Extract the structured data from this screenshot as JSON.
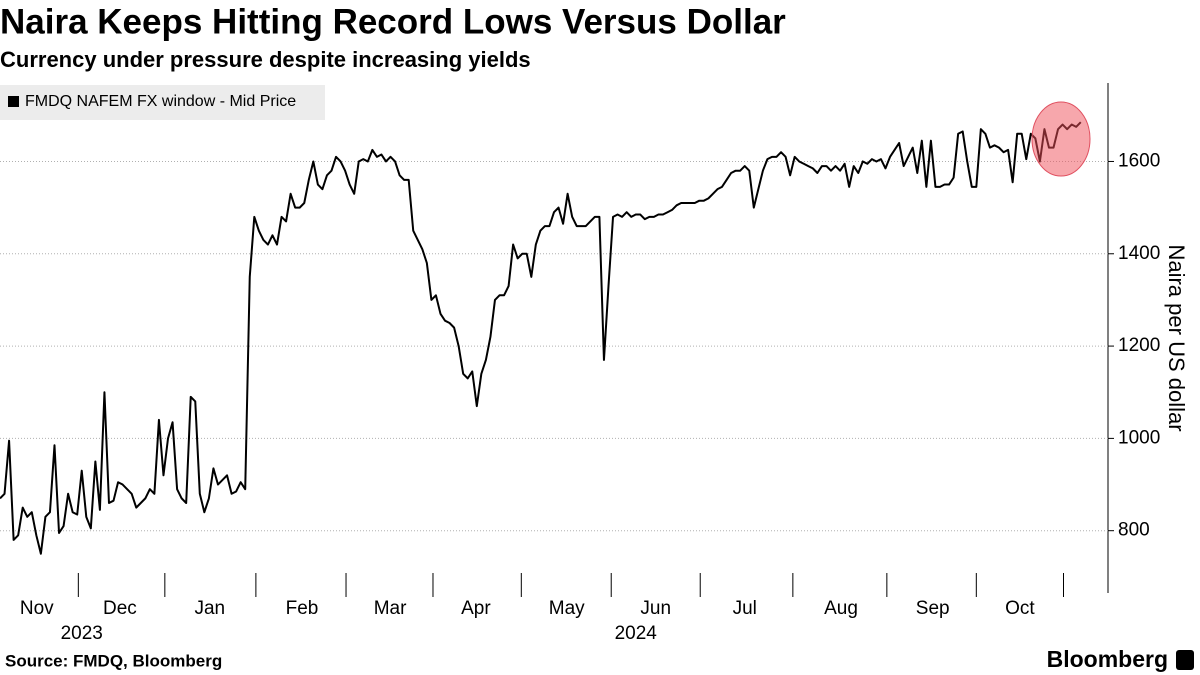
{
  "chart_data": {
    "type": "line",
    "title": "Naira Keeps Hitting Record Lows Versus Dollar",
    "subtitle": "Currency under pressure despite increasing yields",
    "ylabel": "Naira per US dollar",
    "source": "Source: FMDQ, Bloomberg",
    "brand": "Bloomberg",
    "ylim": [
      665,
      1770
    ],
    "yticks": [
      800,
      1000,
      1200,
      1400,
      1600
    ],
    "xlim": [
      0,
      244
    ],
    "xticks": [
      {
        "value": 8.1,
        "label": "Nov"
      },
      {
        "value": 26.4,
        "label": "Dec"
      },
      {
        "value": 46.2,
        "label": "Jan"
      },
      {
        "value": 66.5,
        "label": "Feb"
      },
      {
        "value": 85.9,
        "label": "Mar"
      },
      {
        "value": 104.8,
        "label": "Apr"
      },
      {
        "value": 124.8,
        "label": "May"
      },
      {
        "value": 144.4,
        "label": "Jun"
      },
      {
        "value": 164,
        "label": "Jul"
      },
      {
        "value": 185.2,
        "label": "Aug"
      },
      {
        "value": 205.4,
        "label": "Sep"
      },
      {
        "value": 224.6,
        "label": "Oct"
      }
    ],
    "year_labels": [
      {
        "value": 18,
        "label": "2023"
      },
      {
        "value": 140,
        "label": "2024"
      }
    ],
    "grid": true,
    "legend": "top-left",
    "series": [
      {
        "name": "FMDQ NAFEM FX window - Mid Price",
        "color": "#000000",
        "values": [
          870,
          880,
          995,
          780,
          790,
          850,
          830,
          840,
          790,
          750,
          830,
          840,
          985,
          795,
          810,
          880,
          840,
          835,
          930,
          830,
          805,
          950,
          845,
          1100,
          860,
          865,
          905,
          900,
          890,
          880,
          850,
          860,
          870,
          890,
          880,
          1040,
          920,
          1000,
          1035,
          890,
          870,
          860,
          1090,
          1080,
          880,
          840,
          870,
          935,
          900,
          910,
          920,
          880,
          885,
          905,
          890,
          1350,
          1480,
          1450,
          1430,
          1420,
          1440,
          1420,
          1480,
          1470,
          1530,
          1500,
          1500,
          1510,
          1560,
          1600,
          1550,
          1540,
          1570,
          1580,
          1610,
          1600,
          1580,
          1550,
          1530,
          1600,
          1605,
          1600,
          1625,
          1610,
          1615,
          1600,
          1610,
          1600,
          1570,
          1560,
          1560,
          1450,
          1430,
          1410,
          1380,
          1300,
          1310,
          1270,
          1255,
          1250,
          1240,
          1200,
          1140,
          1130,
          1145,
          1070,
          1140,
          1170,
          1220,
          1300,
          1310,
          1310,
          1330,
          1420,
          1390,
          1400,
          1400,
          1350,
          1420,
          1450,
          1460,
          1460,
          1490,
          1500,
          1465,
          1530,
          1480,
          1460,
          1460,
          1460,
          1470,
          1480,
          1480,
          1170,
          1330,
          1480,
          1485,
          1480,
          1490,
          1480,
          1485,
          1485,
          1475,
          1480,
          1480,
          1485,
          1485,
          1490,
          1495,
          1505,
          1510,
          1510,
          1510,
          1510,
          1515,
          1515,
          1520,
          1530,
          1540,
          1545,
          1560,
          1575,
          1580,
          1580,
          1590,
          1580,
          1500,
          1540,
          1580,
          1605,
          1610,
          1610,
          1620,
          1610,
          1570,
          1610,
          1600,
          1595,
          1590,
          1585,
          1575,
          1590,
          1590,
          1580,
          1590,
          1580,
          1595,
          1545,
          1590,
          1575,
          1600,
          1595,
          1605,
          1600,
          1605,
          1585,
          1610,
          1625,
          1640,
          1590,
          1610,
          1630,
          1575,
          1645,
          1545,
          1645,
          1545,
          1545,
          1550,
          1550,
          1565,
          1660,
          1665,
          1600,
          1545,
          1545,
          1670,
          1660,
          1630,
          1635,
          1630,
          1620,
          1625,
          1555,
          1660,
          1660,
          1605,
          1660,
          1650,
          1600,
          1670,
          1630,
          1630,
          1670,
          1680,
          1670,
          1680,
          1675,
          1685
        ]
      }
    ]
  }
}
